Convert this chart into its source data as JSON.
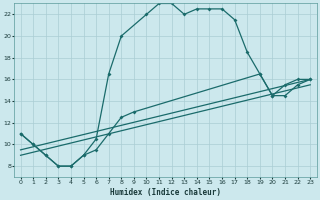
{
  "xlabel": "Humidex (Indice chaleur)",
  "bg_color": "#cce8ed",
  "grid_color": "#aacdd4",
  "line_color": "#1a6b6b",
  "xlim": [
    -0.5,
    23.5
  ],
  "ylim": [
    7,
    23
  ],
  "xticks": [
    0,
    1,
    2,
    3,
    4,
    5,
    6,
    7,
    8,
    9,
    10,
    11,
    12,
    13,
    14,
    15,
    16,
    17,
    18,
    19,
    20,
    21,
    22,
    23
  ],
  "yticks": [
    8,
    10,
    12,
    14,
    16,
    18,
    20,
    22
  ],
  "curve1_x": [
    0,
    1,
    2,
    3,
    4,
    5,
    6,
    7,
    8,
    10,
    11,
    12,
    13,
    14,
    15,
    16,
    17,
    18,
    19,
    20,
    21,
    22,
    23
  ],
  "curve1_y": [
    11,
    10,
    9,
    8,
    8,
    9,
    10.5,
    16.5,
    20,
    22,
    23,
    23,
    22,
    22.5,
    22.5,
    22.5,
    21.5,
    18.5,
    16.5,
    14.5,
    15.5,
    16,
    16
  ],
  "curve2_x": [
    0,
    1,
    2,
    3,
    4,
    5,
    6,
    7,
    8,
    9,
    19,
    20,
    21,
    22,
    23
  ],
  "curve2_y": [
    11,
    10,
    9,
    8,
    8,
    9,
    9.5,
    11,
    12.5,
    13,
    16.5,
    14.5,
    14.5,
    15.5,
    16
  ],
  "line1_x": [
    0,
    23
  ],
  "line1_y": [
    9,
    15.5
  ],
  "line2_x": [
    0,
    23
  ],
  "line2_y": [
    9.5,
    16
  ]
}
